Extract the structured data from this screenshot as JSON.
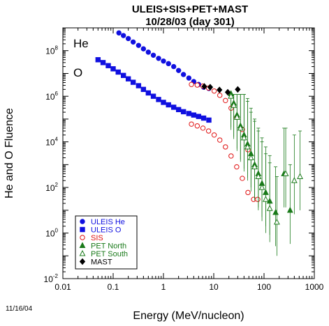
{
  "chart_data": {
    "type": "scatter",
    "title": "ULEIS+SIS+PET+MAST",
    "subtitle": "10/28/03 (day 301)",
    "xlabel": "Energy (MeV/nucleon)",
    "ylabel": "He and O Fluence",
    "xscale": "log",
    "yscale": "log",
    "xlim": [
      0.01,
      1000
    ],
    "ylim": [
      0.01,
      1000000000
    ],
    "x_ticks": [
      "0.01",
      "0.1",
      "1",
      "10",
      "100",
      "1000"
    ],
    "y_ticks": [
      {
        "base": "10",
        "exp": "-2"
      },
      {
        "base": "10",
        "exp": "0"
      },
      {
        "base": "10",
        "exp": "2"
      },
      {
        "base": "10",
        "exp": "4"
      },
      {
        "base": "10",
        "exp": "6"
      },
      {
        "base": "10",
        "exp": "8"
      }
    ],
    "annotations": {
      "he": "He",
      "o": "O"
    },
    "date_stamp": "11/16/04",
    "legend_position": "bottom-left",
    "series": [
      {
        "name": "ULEIS He",
        "marker": "circle",
        "filled": true,
        "color": "#1010e0",
        "x": [
          0.13,
          0.16,
          0.2,
          0.25,
          0.32,
          0.4,
          0.5,
          0.63,
          0.8,
          1.0,
          1.26,
          1.6,
          2.0,
          2.5,
          3.2,
          4.0,
          5.0,
          6.3,
          8.0
        ],
        "y": [
          600000000.0,
          460000000.0,
          340000000.0,
          240000000.0,
          170000000.0,
          120000000.0,
          86000000.0,
          63000000.0,
          46000000.0,
          35000000.0,
          27000000.0,
          20000000.0,
          13500000.0,
          9000000.0,
          6300000.0,
          4400000.0,
          3300000.0,
          2500000.0,
          2200000.0
        ]
      },
      {
        "name": "ULEIS O",
        "marker": "square",
        "filled": true,
        "color": "#1010e0",
        "x": [
          0.05,
          0.063,
          0.08,
          0.1,
          0.126,
          0.16,
          0.2,
          0.25,
          0.32,
          0.4,
          0.5,
          0.63,
          0.8,
          1.0,
          1.26,
          1.6,
          2.0,
          2.5,
          3.2,
          4.0,
          5.0,
          6.3,
          8.0
        ],
        "y": [
          40000000.0,
          30000000.0,
          22000000.0,
          16000000.0,
          11500000.0,
          8200000.0,
          5800000.0,
          4100000.0,
          2900000.0,
          2000000.0,
          1400000.0,
          1000000.0,
          720000.0,
          540000.0,
          420000.0,
          330000.0,
          260000.0,
          210000.0,
          175000.0,
          150000.0,
          130000.0,
          110000.0,
          90000.0
        ]
      },
      {
        "name": "SIS",
        "marker": "circle",
        "filled": false,
        "color": "#e01010",
        "x": [
          3.6,
          4.7,
          6.1,
          7.9,
          10.2,
          13.2,
          17.1,
          22.1,
          28.6,
          37.0,
          47.9,
          3.6,
          4.7,
          6.1,
          7.9,
          10.2,
          13.2,
          17.1,
          22.1,
          28.6,
          37.0,
          47.9,
          62.0,
          75.0
        ],
        "y": [
          3300000.0,
          3100000.0,
          2800000.0,
          2300000.0,
          1700000.0,
          1100000.0,
          650000.0,
          300000.0,
          120000.0,
          35000.0,
          4500.0,
          60000.0,
          50000.0,
          40000.0,
          30000.0,
          20000.0,
          12000.0,
          6000.0,
          2400.0,
          800.0,
          250.0,
          60,
          30,
          30
        ]
      },
      {
        "name": "PET North",
        "marker": "triangle",
        "filled": true,
        "color": "#1a7a1a",
        "x": [
          22.0,
          25.0,
          29.0,
          34.0,
          40.0,
          47.0,
          55.0,
          65.0,
          77.0,
          91.0,
          108.0,
          130.0,
          170.0,
          250.0,
          330.0
        ],
        "y": [
          1300000.0,
          500000.0,
          150000.0,
          50000.0,
          20000.0,
          8000.0,
          3000.0,
          1000.0,
          400,
          150,
          60,
          25,
          8,
          400,
          10
        ]
      },
      {
        "name": "PET South",
        "marker": "triangle",
        "filled": false,
        "color": "#1a7a1a",
        "x": [
          22.0,
          25.0,
          29.0,
          34.0,
          40.0,
          47.0,
          55.0,
          65.0,
          77.0,
          91.0,
          108.0,
          130.0,
          180.0,
          270.0,
          400.0,
          520.0
        ],
        "y": [
          1000000.0,
          400000.0,
          120000.0,
          40000.0,
          15000.0,
          6000.0,
          2000.0,
          800.0,
          300,
          100,
          30,
          12,
          3,
          400,
          200,
          300
        ]
      },
      {
        "name": "MAST",
        "marker": "diamond",
        "filled": true,
        "color": "#000000",
        "x": [
          6.5,
          8.5,
          13.0,
          19.0,
          30.0
        ],
        "y": [
          2700000.0,
          2500000.0,
          1900000.0,
          1500000.0,
          2000000.0
        ]
      }
    ]
  }
}
